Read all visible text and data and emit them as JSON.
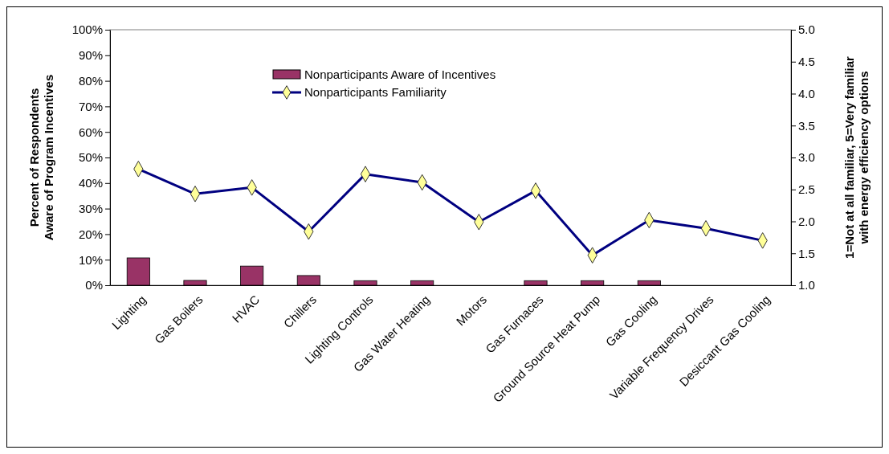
{
  "chart_data": {
    "type": "bar",
    "categories": [
      "Lighting",
      "Gas Boilers",
      "HVAC",
      "Chillers",
      "Lighting Controls",
      "Gas Water Heating",
      "Motors",
      "Gas Furnaces",
      "Ground Source Heat Pump",
      "Gas Cooling",
      "Variable Frequency Drives",
      "Desiccant Gas Cooling"
    ],
    "ylabel": "Percent of Respondents\nAware of Program Incentives",
    "y2label": "1=Not at all familiar, 5=Very familiar\nwith energy efficiency options",
    "ylim": [
      0,
      100
    ],
    "yticks": [
      {
        "value": 0,
        "label": "0%"
      },
      {
        "value": 10,
        "label": "10%"
      },
      {
        "value": 20,
        "label": "20%"
      },
      {
        "value": 30,
        "label": "30%"
      },
      {
        "value": 40,
        "label": "40%"
      },
      {
        "value": 50,
        "label": "50%"
      },
      {
        "value": 60,
        "label": "60%"
      },
      {
        "value": 70,
        "label": "70%"
      },
      {
        "value": 80,
        "label": "80%"
      },
      {
        "value": 90,
        "label": "90%"
      },
      {
        "value": 100,
        "label": "100%"
      }
    ],
    "y2lim": [
      1,
      5
    ],
    "y2ticks": [
      {
        "value": 1,
        "label": "1.0"
      },
      {
        "value": 1.5,
        "label": "1.5"
      },
      {
        "value": 2,
        "label": "2.0"
      },
      {
        "value": 2.5,
        "label": "2.5"
      },
      {
        "value": 3,
        "label": "3.0"
      },
      {
        "value": 3.5,
        "label": "3.5"
      },
      {
        "value": 4,
        "label": "4.0"
      },
      {
        "value": 4.5,
        "label": "4.5"
      },
      {
        "value": 5,
        "label": "5.0"
      }
    ],
    "legend": "top",
    "series": [
      {
        "name": "Nonparticipants Aware of Incentives",
        "color": "#993366",
        "values": [
          10.7,
          1.9,
          7.5,
          3.8,
          1.8,
          1.8,
          0,
          1.8,
          1.8,
          1.8,
          0,
          0
        ]
      },
      {
        "name": "Nonparticipants Familiarity",
        "type": "line",
        "axis": "y2",
        "color": "#000080",
        "marker": "diamond",
        "values": [
          2.82,
          2.43,
          2.53,
          1.84,
          2.74,
          2.61,
          1.99,
          2.48,
          1.47,
          2.02,
          1.89,
          1.7
        ]
      }
    ]
  }
}
